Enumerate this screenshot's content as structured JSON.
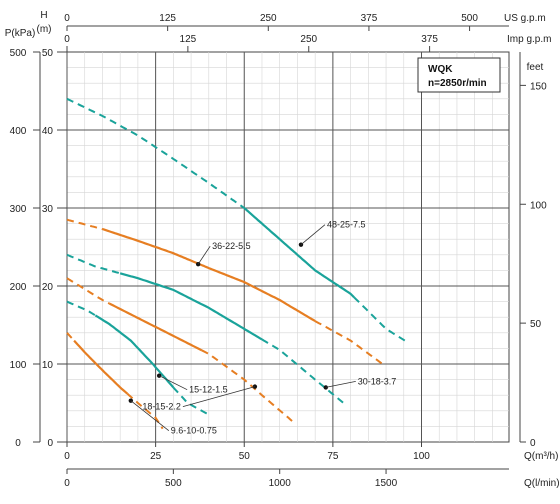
{
  "chart_data": {
    "type": "line",
    "legend": {
      "title": "WQK",
      "subtitle": "n=2850r/min",
      "position": "top-right"
    },
    "axes": {
      "x_primary": {
        "label": "Q(m³/h)",
        "range": [
          0,
          100
        ],
        "ticks": [
          0,
          25,
          50,
          75,
          100
        ]
      },
      "x_lpm": {
        "label": "Q(l/min)",
        "ticks": [
          "0",
          "500",
          "1000",
          "1500"
        ]
      },
      "x_us": {
        "label": "US g.p.m",
        "ticks": [
          "0",
          "125",
          "250",
          "375",
          "500"
        ]
      },
      "x_imp": {
        "label": "Imp g.p.m",
        "ticks": [
          "0",
          "125",
          "250",
          "375"
        ]
      },
      "y_head_m": {
        "label": "H",
        "unit": "(m)",
        "range": [
          0,
          50
        ],
        "ticks": [
          "0",
          "10",
          "20",
          "30",
          "40",
          "50"
        ]
      },
      "y_pressure": {
        "label": "P(kPa)",
        "ticks": [
          "0",
          "100",
          "200",
          "300",
          "400",
          "500"
        ]
      },
      "y_feet": {
        "label": "feet",
        "ticks": [
          "0",
          "50",
          "100",
          "150"
        ]
      }
    },
    "grid": true,
    "series": [
      {
        "name": "48-25-7.5",
        "color": "#1aa39a",
        "points": [
          [
            0,
            44
          ],
          [
            10,
            41.8
          ],
          [
            20,
            39.3
          ],
          [
            30,
            36.3
          ],
          [
            40,
            33.2
          ],
          [
            50,
            30
          ],
          [
            60,
            26
          ],
          [
            70,
            22
          ],
          [
            80,
            19
          ],
          [
            90,
            14.5
          ],
          [
            96,
            12.8
          ]
        ],
        "solid_range": [
          50,
          81
        ]
      },
      {
        "name": "36-22-5.5",
        "color": "#e67e22",
        "points": [
          [
            0,
            28.5
          ],
          [
            10,
            27.3
          ],
          [
            20,
            25.8
          ],
          [
            30,
            24.2
          ],
          [
            40,
            22.3
          ],
          [
            50,
            20.5
          ],
          [
            60,
            18.2
          ],
          [
            70,
            15.5
          ],
          [
            80,
            13
          ],
          [
            89,
            10
          ]
        ],
        "solid_range": [
          10,
          70
        ]
      },
      {
        "name": "30-18-3.7",
        "color": "#1aa39a",
        "points": [
          [
            0,
            24
          ],
          [
            8,
            22.5
          ],
          [
            20,
            21
          ],
          [
            30,
            19.5
          ],
          [
            40,
            17.2
          ],
          [
            50,
            14.5
          ],
          [
            60,
            11.8
          ],
          [
            70,
            8
          ],
          [
            78,
            5
          ]
        ],
        "solid_range": [
          15,
          55
        ]
      },
      {
        "name": "18-15-2.2",
        "color": "#e67e22",
        "points": [
          [
            0,
            21
          ],
          [
            10,
            18.2
          ],
          [
            20,
            15.9
          ],
          [
            30,
            13.6
          ],
          [
            40,
            11.3
          ],
          [
            50,
            8
          ],
          [
            55,
            6
          ],
          [
            64,
            2.5
          ]
        ],
        "solid_range": [
          12,
          38
        ]
      },
      {
        "name": "15-12-1.5",
        "color": "#1aa39a",
        "points": [
          [
            0,
            18
          ],
          [
            6,
            16.8
          ],
          [
            12,
            15.1
          ],
          [
            18,
            13
          ],
          [
            24,
            10.1
          ],
          [
            30,
            7
          ],
          [
            34,
            5
          ],
          [
            40,
            3.5
          ]
        ],
        "solid_range": [
          8,
          30
        ]
      },
      {
        "name": "9.6-10-0.75",
        "color": "#e67e22",
        "points": [
          [
            0,
            14
          ],
          [
            5,
            11.5
          ],
          [
            10,
            9.2
          ],
          [
            15,
            7
          ],
          [
            20,
            5
          ],
          [
            25,
            3.1
          ],
          [
            27,
            1.7
          ]
        ],
        "solid_range": [
          2,
          17
        ]
      }
    ],
    "annotations": [
      {
        "text": "48-25-7.5",
        "x": 66,
        "y": 25.3
      },
      {
        "text": "36-22-5.5",
        "x": 37,
        "y": 22.8
      },
      {
        "text": "30-18-3.7",
        "x": 73,
        "y": 7
      },
      {
        "text": "18-15-2.2",
        "x": 53,
        "y": 7.1
      },
      {
        "text": "15-12-1.5",
        "x": 26,
        "y": 8.5
      },
      {
        "text": "9.6-10-0.75",
        "x": 18,
        "y": 5.3
      }
    ]
  }
}
